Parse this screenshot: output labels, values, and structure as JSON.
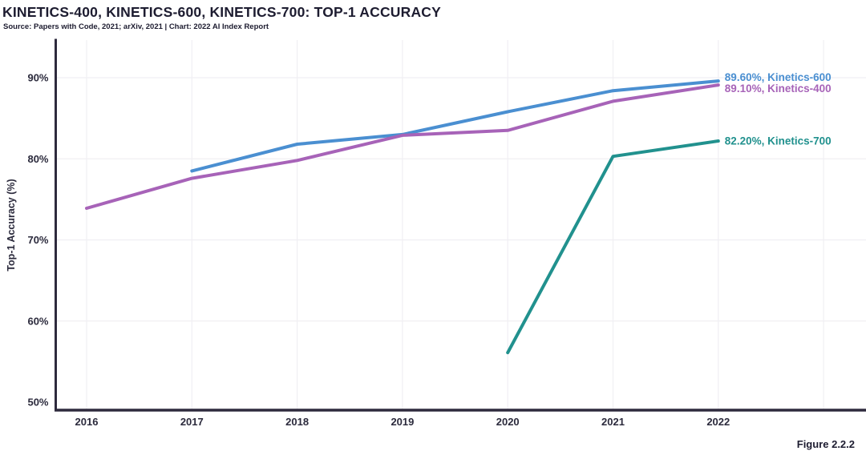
{
  "header": {
    "title": "KINETICS-400, KINETICS-600, KINETICS-700: TOP-1 ACCURACY",
    "source": "Source: Papers with Code, 2021; arXiv, 2021 | Chart: 2022 AI Index Report"
  },
  "figure_caption": "Figure 2.2.2",
  "chart_data": {
    "type": "line",
    "title": "KINETICS-400, KINETICS-600, KINETICS-700: TOP-1 ACCURACY",
    "xlabel": "",
    "ylabel": "Top-1 Accuracy (%)",
    "grid": true,
    "legend_position": "line-end-labels",
    "x_axis_extent": [
      2016,
      2023
    ],
    "ylim": [
      49,
      94
    ],
    "x_ticks": [
      {
        "v": 2016,
        "label": "2016"
      },
      {
        "v": 2017,
        "label": "2017"
      },
      {
        "v": 2018,
        "label": "2018"
      },
      {
        "v": 2019,
        "label": "2019"
      },
      {
        "v": 2020,
        "label": "2020"
      },
      {
        "v": 2021,
        "label": "2021"
      },
      {
        "v": 2022,
        "label": "2022"
      }
    ],
    "y_ticks": [
      {
        "v": 90,
        "label": "90%"
      },
      {
        "v": 80,
        "label": "80%"
      },
      {
        "v": 70,
        "label": "70%"
      },
      {
        "v": 60,
        "label": "60%"
      },
      {
        "v": 50,
        "label": "50%"
      }
    ],
    "series": [
      {
        "name": "Kinetics-600",
        "color": "#4a8fd1",
        "end_label": "89.60%, Kinetics-600",
        "points": [
          [
            2017,
            78.5
          ],
          [
            2018,
            81.8
          ],
          [
            2019,
            83.0
          ],
          [
            2020,
            85.8
          ],
          [
            2021,
            88.4
          ],
          [
            2022,
            89.6
          ]
        ]
      },
      {
        "name": "Kinetics-400",
        "color": "#a763b8",
        "end_label": "89.10%, Kinetics-400",
        "points": [
          [
            2016,
            73.9
          ],
          [
            2017,
            77.6
          ],
          [
            2018,
            79.8
          ],
          [
            2019,
            82.9
          ],
          [
            2020,
            83.5
          ],
          [
            2021,
            87.1
          ],
          [
            2022,
            89.1
          ]
        ]
      },
      {
        "name": "Kinetics-700",
        "color": "#21918e",
        "end_label": "82.20%, Kinetics-700",
        "points": [
          [
            2020,
            56.1
          ],
          [
            2021,
            80.3
          ],
          [
            2022,
            82.2
          ]
        ]
      }
    ],
    "colors": {
      "axis": "#2e2a3d",
      "gridline": "#f0eff3",
      "tick_label": "#2b2a3c",
      "background": "#ffffff"
    }
  }
}
